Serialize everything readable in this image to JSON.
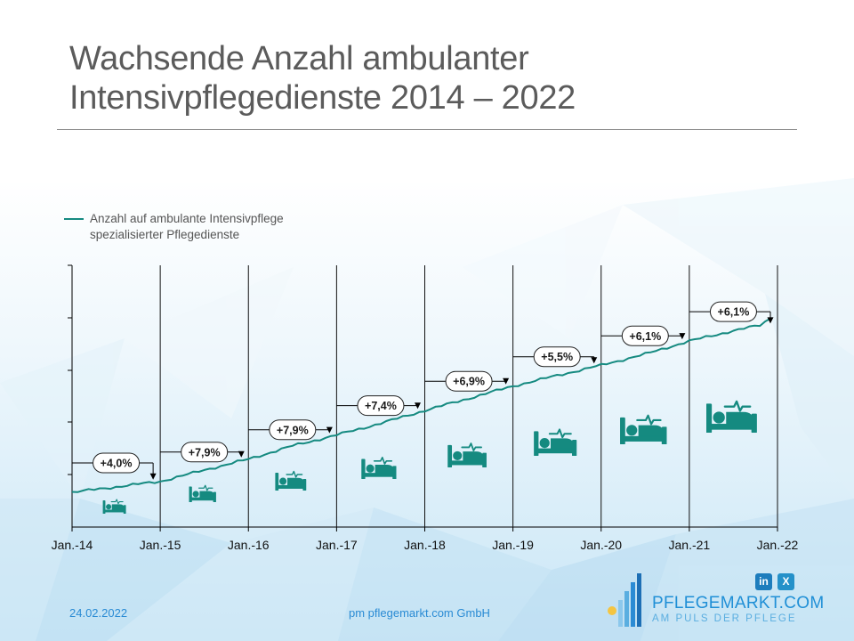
{
  "title": "Wachsende Anzahl ambulanter Intensivpflegedienste 2014 – 2022",
  "legend_label": "Anzahl auf ambulante Intensivpflege spezialisierter Pflegedienste",
  "footer": {
    "date": "24.02.2022",
    "company": "pm pflegemarkt.com GmbH"
  },
  "brand": {
    "name": "PFLEGEMARKT.COM",
    "tagline": "AM PULS DER PFLEGE",
    "linkedin_label": "in",
    "xing_label": "X"
  },
  "colors": {
    "line": "#158a80",
    "icon": "#158a80",
    "title": "#5b5b5b",
    "footer": "#2a8bd4",
    "background_tint": "#dbeef9"
  },
  "chart_data": {
    "type": "line",
    "title": "Wachsende Anzahl ambulanter Intensivpflegedienste 2014 – 2022",
    "x_ticks": [
      "Jan.-14",
      "Jan.-15",
      "Jan.-16",
      "Jan.-17",
      "Jan.-18",
      "Jan.-19",
      "Jan.-20",
      "Jan.-21",
      "Jan.-22"
    ],
    "y_axis": "no tick labels",
    "grid": "vertical lines at each January",
    "legend_position": "top-left",
    "series": [
      {
        "name": "Anzahl auf ambulante Intensivpflege spezialisierter Pflegedienste",
        "relative_index": {
          "x": [
            2014.0,
            2014.5,
            2015.0,
            2015.5,
            2016.0,
            2016.5,
            2017.0,
            2017.5,
            2018.0,
            2018.5,
            2019.0,
            2019.5,
            2020.0,
            2020.5,
            2021.0,
            2021.5,
            2021.8,
            2021.92
          ],
          "y": [
            100,
            102.0,
            104.0,
            108.2,
            112.2,
            117.1,
            121.1,
            125.4,
            130.1,
            134.6,
            139.1,
            143.0,
            146.8,
            150.9,
            155.7,
            159.5,
            161.5,
            164.0
          ]
        }
      }
    ],
    "annotations": [
      "+4,0%",
      "+7,9%",
      "+7,9%",
      "+7,4%",
      "+6,9%",
      "+5,5%",
      "+6,1%",
      "+6,1%"
    ],
    "icon": "hospital-bed-icon"
  }
}
